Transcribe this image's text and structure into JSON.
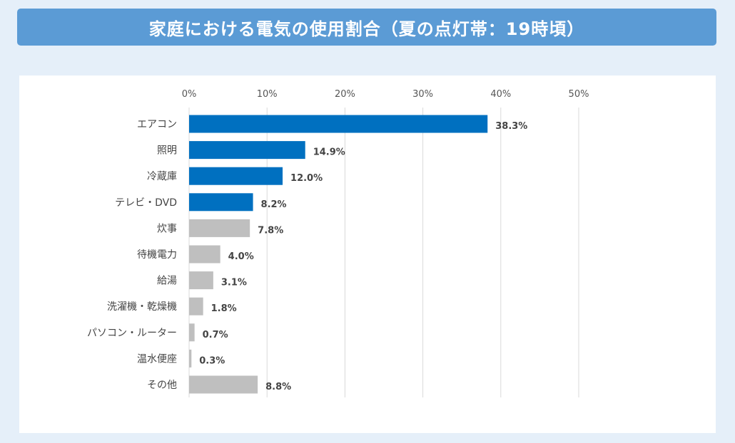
{
  "title": "家庭における電気の使用割合（夏の点灯帯：19時頃）",
  "colors": {
    "highlight": "#0070c0",
    "other": "#bfbfbf",
    "grid": "#d9d9d9",
    "banner": "#5b9bd5",
    "background": "#e5eff9"
  },
  "chart_data": {
    "type": "bar",
    "orientation": "horizontal",
    "xlim": [
      0,
      50
    ],
    "ticks": [
      "0%",
      "10%",
      "20%",
      "30%",
      "40%",
      "50%"
    ],
    "grid": true,
    "categories": [
      "エアコン",
      "照明",
      "冷蔵庫",
      "テレビ・DVD",
      "炊事",
      "待機電力",
      "給湯",
      "洗濯機・乾燥機",
      "パソコン・ルーター",
      "温水便座",
      "その他"
    ],
    "values": [
      38.3,
      14.9,
      12.0,
      8.2,
      7.8,
      4.0,
      3.1,
      1.8,
      0.7,
      0.3,
      8.8
    ],
    "value_labels": [
      "38.3%",
      "14.9%",
      "12.0%",
      "8.2%",
      "7.8%",
      "4.0%",
      "3.1%",
      "1.8%",
      "0.7%",
      "0.3%",
      "8.8%"
    ],
    "highlighted": [
      true,
      true,
      true,
      true,
      false,
      false,
      false,
      false,
      false,
      false,
      false
    ]
  }
}
